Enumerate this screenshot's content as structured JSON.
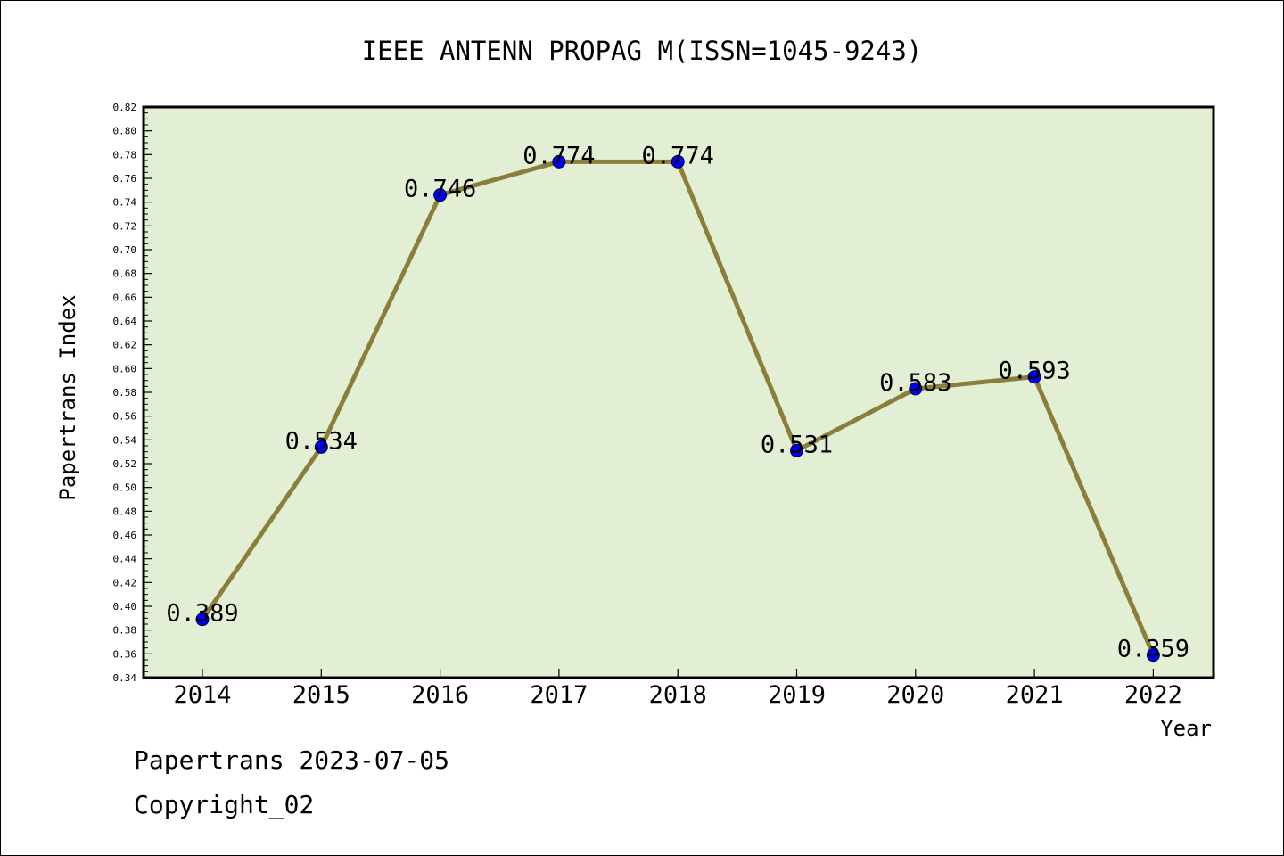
{
  "chart_data": {
    "type": "line",
    "title": "IEEE ANTENN PROPAG M(ISSN=1045-9243)",
    "xlabel": "Year",
    "ylabel": "Papertrans Index",
    "categories": [
      "2014",
      "2015",
      "2016",
      "2017",
      "2018",
      "2019",
      "2020",
      "2021",
      "2022"
    ],
    "values": [
      0.389,
      0.534,
      0.746,
      0.774,
      0.774,
      0.531,
      0.583,
      0.593,
      0.359
    ],
    "data_labels": [
      "0.389",
      "0.534",
      "0.746",
      "0.774",
      "0.774",
      "0.531",
      "0.583",
      "0.593",
      "0.359"
    ],
    "ylim": [
      0.34,
      0.82
    ],
    "yticks": [
      "0.34",
      "0.36",
      "0.38",
      "0.40",
      "0.42",
      "0.44",
      "0.46",
      "0.48",
      "0.50",
      "0.52",
      "0.54",
      "0.56",
      "0.58",
      "0.60",
      "0.62",
      "0.64",
      "0.66",
      "0.68",
      "0.70",
      "0.72",
      "0.74",
      "0.76",
      "0.78",
      "0.80",
      "0.82"
    ],
    "grid": false,
    "colors": {
      "plot_background": "#e2efd5",
      "line": "#8b7d3a",
      "marker": "#0000ff"
    }
  },
  "footer": {
    "line1": "Papertrans 2023-07-05",
    "line2": "Copyright_02"
  }
}
